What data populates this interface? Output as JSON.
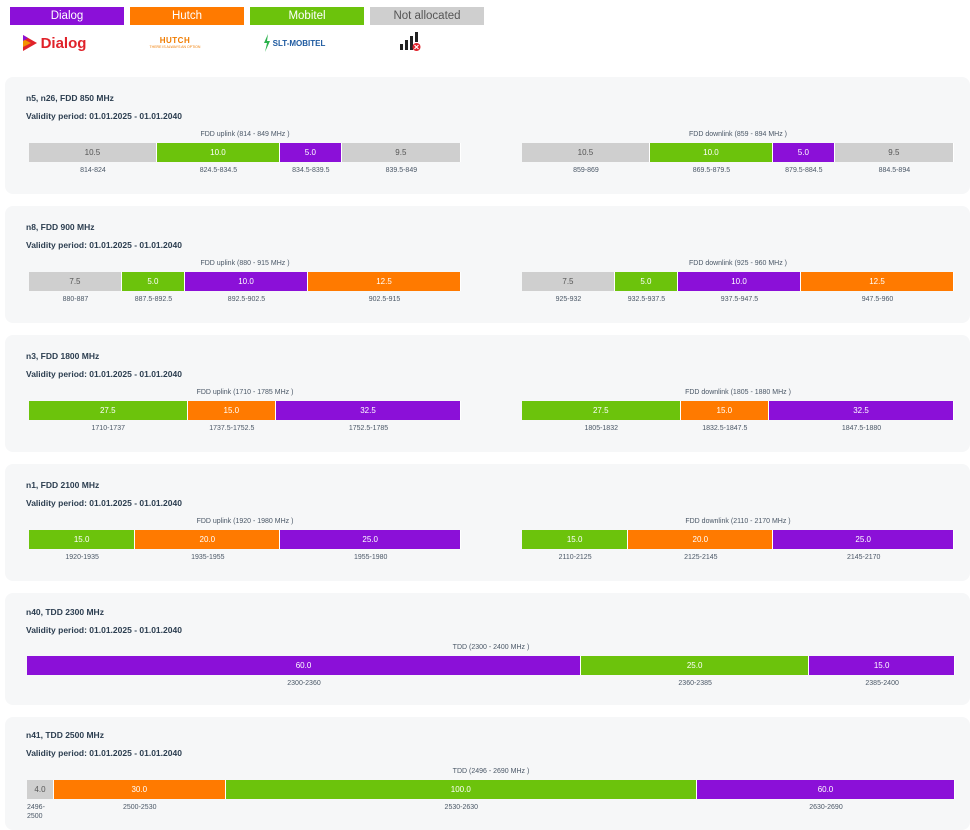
{
  "colors": {
    "dialog": "#8b10d8",
    "hutch": "#ff7a00",
    "mobitel": "#6cc30c",
    "na": "#cfcfcf"
  },
  "legend": [
    {
      "label": "Dialog",
      "color": "dialog"
    },
    {
      "label": "Hutch",
      "color": "hutch"
    },
    {
      "label": "Mobitel",
      "color": "mobitel"
    },
    {
      "label": "Not allocated",
      "color": "na"
    }
  ],
  "logos": {
    "dialog_text": "Dialog",
    "hutch_text": "HUTCH",
    "hutch_tagline": "THERE IS ALWAYS AN OPTION",
    "slt_text": "SLT-MOBITEL",
    "na_icon": "no-signal-icon"
  },
  "cards": [
    {
      "title": "n5, n26, FDD 850 MHz",
      "validity": "Validity period: 01.01.2025 - 01.01.2040",
      "bands": [
        {
          "label": "FDD uplink (814 - 849 MHz )",
          "segments": [
            {
              "value": "10.5",
              "color": "na",
              "range": "814-824"
            },
            {
              "value": "10.0",
              "color": "mobitel",
              "range": "824.5-834.5"
            },
            {
              "value": "5.0",
              "color": "dialog",
              "range": "834.5-839.5"
            },
            {
              "value": "9.5",
              "color": "na",
              "range": "839.5-849"
            }
          ]
        },
        {
          "label": "FDD downlink (859 - 894 MHz )",
          "segments": [
            {
              "value": "10.5",
              "color": "na",
              "range": "859-869"
            },
            {
              "value": "10.0",
              "color": "mobitel",
              "range": "869.5-879.5"
            },
            {
              "value": "5.0",
              "color": "dialog",
              "range": "879.5-884.5"
            },
            {
              "value": "9.5",
              "color": "na",
              "range": "884.5-894"
            }
          ]
        }
      ]
    },
    {
      "title": "n8, FDD 900 MHz",
      "validity": "Validity period: 01.01.2025 - 01.01.2040",
      "bands": [
        {
          "label": "FDD uplink (880 - 915 MHz )",
          "segments": [
            {
              "value": "7.5",
              "color": "na",
              "range": "880-887"
            },
            {
              "value": "5.0",
              "color": "mobitel",
              "range": "887.5-892.5"
            },
            {
              "value": "10.0",
              "color": "dialog",
              "range": "892.5-902.5"
            },
            {
              "value": "12.5",
              "color": "hutch",
              "range": "902.5-915"
            }
          ]
        },
        {
          "label": "FDD downlink (925 - 960 MHz )",
          "segments": [
            {
              "value": "7.5",
              "color": "na",
              "range": "925-932"
            },
            {
              "value": "5.0",
              "color": "mobitel",
              "range": "932.5-937.5"
            },
            {
              "value": "10.0",
              "color": "dialog",
              "range": "937.5-947.5"
            },
            {
              "value": "12.5",
              "color": "hutch",
              "range": "947.5-960"
            }
          ]
        }
      ]
    },
    {
      "title": "n3, FDD 1800 MHz",
      "validity": "Validity period: 01.01.2025 - 01.01.2040",
      "bands": [
        {
          "label": "FDD uplink (1710 - 1785 MHz )",
          "segments": [
            {
              "value": "27.5",
              "color": "mobitel",
              "range": "1710-1737"
            },
            {
              "value": "15.0",
              "color": "hutch",
              "range": "1737.5-1752.5"
            },
            {
              "value": "32.5",
              "color": "dialog",
              "range": "1752.5-1785"
            }
          ]
        },
        {
          "label": "FDD downlink (1805 - 1880 MHz )",
          "segments": [
            {
              "value": "27.5",
              "color": "mobitel",
              "range": "1805-1832"
            },
            {
              "value": "15.0",
              "color": "hutch",
              "range": "1832.5-1847.5"
            },
            {
              "value": "32.5",
              "color": "dialog",
              "range": "1847.5-1880"
            }
          ]
        }
      ]
    },
    {
      "title": "n1, FDD 2100 MHz",
      "validity": "Validity period: 01.01.2025 - 01.01.2040",
      "bands": [
        {
          "label": "FDD uplink (1920 - 1980 MHz )",
          "segments": [
            {
              "value": "15.0",
              "color": "mobitel",
              "range": "1920-1935"
            },
            {
              "value": "20.0",
              "color": "hutch",
              "range": "1935-1955"
            },
            {
              "value": "25.0",
              "color": "dialog",
              "range": "1955-1980"
            }
          ]
        },
        {
          "label": "FDD downlink (2110 - 2170 MHz )",
          "segments": [
            {
              "value": "15.0",
              "color": "mobitel",
              "range": "2110-2125"
            },
            {
              "value": "20.0",
              "color": "hutch",
              "range": "2125-2145"
            },
            {
              "value": "25.0",
              "color": "dialog",
              "range": "2145-2170"
            }
          ]
        }
      ]
    },
    {
      "title": "n40, TDD 2300 MHz",
      "validity": "Validity period: 01.01.2025 - 01.01.2040",
      "bands": [
        {
          "label": "TDD (2300 - 2400 MHz )",
          "segments": [
            {
              "value": "60.0",
              "color": "dialog",
              "range": "2300-2360"
            },
            {
              "value": "25.0",
              "color": "mobitel",
              "range": "2360-2385"
            },
            {
              "value": "15.0",
              "color": "dialog",
              "range": "2385-2400"
            }
          ]
        }
      ]
    },
    {
      "title": "n41, TDD 2500 MHz",
      "validity": "Validity period: 01.01.2025 - 01.01.2040",
      "bands": [
        {
          "label": "TDD (2496 - 2690 MHz )",
          "segments": [
            {
              "value": "4.0",
              "color": "na",
              "range": "2496-2500"
            },
            {
              "value": "30.0",
              "color": "hutch",
              "range": "2500-2530"
            },
            {
              "value": "100.0",
              "color": "mobitel",
              "range": "2530-2630"
            },
            {
              "value": "60.0",
              "color": "dialog",
              "range": "2630-2690"
            }
          ]
        }
      ]
    }
  ]
}
